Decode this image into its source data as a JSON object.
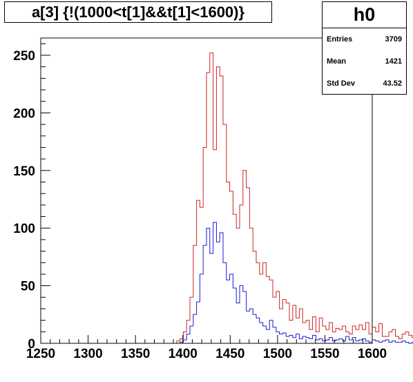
{
  "histogram_title": "a[3] {!(1000<t[1]&&t[1]<1600)}",
  "stats": {
    "name": "h0",
    "rows": [
      {
        "label": "Entries",
        "value": "3709"
      },
      {
        "label": "Mean",
        "value": "1421"
      },
      {
        "label": "Std Dev",
        "value": "43.52"
      }
    ]
  },
  "colors": {
    "red_series": "#cc2222",
    "blue_series": "#1a1ad0",
    "axis": "#000000"
  },
  "chart_data": {
    "type": "histogram",
    "title": "a[3] {!(1000<t[1]&&t[1]<1600)}",
    "xlabel": "",
    "ylabel": "",
    "xlim": [
      1250,
      1600
    ],
    "ylim": [
      0,
      265
    ],
    "bin_start": 1250,
    "bin_width": 3.5,
    "x_ticks": [
      1250,
      1300,
      1350,
      1400,
      1450,
      1500,
      1550,
      1600
    ],
    "x_tick_labels": [
      "1250",
      "1300",
      "1350",
      "1400",
      "1450",
      "1500",
      "1550",
      "1600"
    ],
    "y_ticks": [
      0,
      50,
      100,
      150,
      200,
      250
    ],
    "y_tick_labels": [
      "0",
      "50",
      "100",
      "150",
      "200",
      "250"
    ],
    "grid": false,
    "series": [
      {
        "values": [
          0,
          0,
          0,
          0,
          0,
          0,
          0,
          0,
          0,
          0,
          0,
          0,
          0,
          0,
          0,
          0,
          0,
          0,
          0,
          0,
          0,
          0,
          0,
          0,
          0,
          0,
          0,
          0,
          0,
          0,
          0,
          0,
          0,
          0,
          0,
          0,
          0,
          0,
          0,
          0,
          0,
          2,
          4,
          10,
          20,
          40,
          85,
          124,
          118,
          170,
          235,
          252,
          168,
          240,
          232,
          190,
          140,
          132,
          112,
          100,
          120,
          150,
          135,
          100,
          80,
          70,
          60,
          70,
          58,
          55,
          40,
          45,
          30,
          38,
          35,
          20,
          33,
          22,
          30,
          18,
          20,
          12,
          23,
          10,
          22,
          15,
          12,
          18,
          10,
          13,
          12,
          15,
          10,
          8,
          15,
          12,
          16,
          12,
          18,
          8,
          14,
          10,
          17,
          6,
          6,
          10,
          12,
          6,
          4,
          8,
          10,
          7,
          5,
          5,
          6,
          5,
          8,
          15,
          6,
          3,
          2,
          4,
          3,
          5,
          2
        ],
        "color": "#cc2222"
      },
      {
        "values": [
          0,
          0,
          0,
          0,
          0,
          0,
          0,
          0,
          0,
          0,
          0,
          0,
          0,
          0,
          0,
          0,
          0,
          0,
          0,
          0,
          0,
          0,
          0,
          0,
          0,
          0,
          0,
          0,
          0,
          0,
          0,
          0,
          0,
          0,
          0,
          0,
          0,
          0,
          0,
          0,
          0,
          0,
          1,
          3,
          8,
          15,
          25,
          36,
          60,
          85,
          100,
          78,
          105,
          88,
          96,
          70,
          55,
          60,
          48,
          35,
          50,
          45,
          28,
          30,
          25,
          22,
          18,
          15,
          12,
          20,
          14,
          10,
          8,
          9,
          6,
          7,
          5,
          8,
          4,
          6,
          5,
          4,
          7,
          3,
          4,
          2,
          3,
          5,
          2,
          3,
          4,
          2,
          6,
          3,
          5,
          2,
          3,
          4,
          2,
          1,
          3,
          2,
          1,
          2,
          3,
          1,
          2,
          1,
          1,
          2,
          1,
          0,
          1,
          2,
          1,
          0,
          1,
          0,
          1,
          0,
          0,
          1,
          0,
          0,
          1
        ],
        "color": "#1a1ad0"
      }
    ]
  }
}
